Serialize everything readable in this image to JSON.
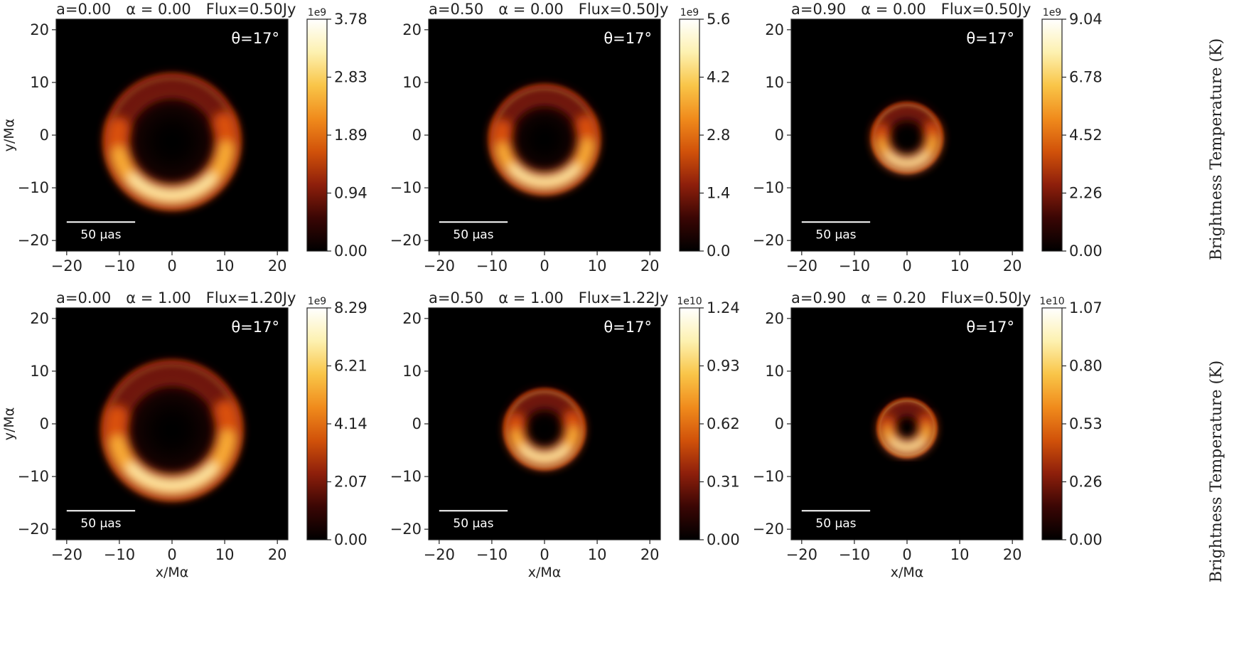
{
  "figure": {
    "colorbar_label": "Brightness Temperature (K)",
    "scale_bar_label": "50 μas",
    "inclination_label": "θ=17°",
    "x_axis_label": "x/Mα",
    "y_axis_label": "y/Mα"
  },
  "chart_data": [
    {
      "type": "heatmap",
      "title": "a=0.00   α = 0.00   Flux=0.50Jy",
      "spin": 0.0,
      "alpha": 0.0,
      "flux_jy": 0.5,
      "inclination_deg": 17,
      "xlim": [
        -22,
        22
      ],
      "ylim": [
        -22,
        22
      ],
      "ring_radius": 10.5,
      "ring_center_y": -1.2,
      "ring_width": 3.2,
      "asymmetry": 0.45,
      "colorbar": {
        "scale": "1e9",
        "ticks": [
          "0.00",
          "0.94",
          "1.89",
          "2.83",
          "3.78"
        ],
        "max": 3.78
      }
    },
    {
      "type": "heatmap",
      "title": "a=0.50   α = 0.00   Flux=0.50Jy",
      "spin": 0.5,
      "alpha": 0.0,
      "flux_jy": 0.5,
      "inclination_deg": 17,
      "xlim": [
        -22,
        22
      ],
      "ylim": [
        -22,
        22
      ],
      "ring_radius": 8.3,
      "ring_center_y": -0.8,
      "ring_width": 2.8,
      "asymmetry": 0.5,
      "colorbar": {
        "scale": "1e9",
        "ticks": [
          "0.0",
          "1.4",
          "2.8",
          "4.2",
          "5.6"
        ],
        "max": 5.6
      }
    },
    {
      "type": "heatmap",
      "title": "a=0.90   α = 0.00   Flux=0.50Jy",
      "spin": 0.9,
      "alpha": 0.0,
      "flux_jy": 0.5,
      "inclination_deg": 17,
      "xlim": [
        -22,
        22
      ],
      "ylim": [
        -22,
        22
      ],
      "ring_radius": 5.0,
      "ring_center_y": -0.5,
      "ring_width": 2.2,
      "asymmetry": 0.55,
      "colorbar": {
        "scale": "1e9",
        "ticks": [
          "0.00",
          "2.26",
          "4.52",
          "6.78",
          "9.04"
        ],
        "max": 9.04
      }
    },
    {
      "type": "heatmap",
      "title": "a=0.00   α = 1.00   Flux=1.20Jy",
      "spin": 0.0,
      "alpha": 1.0,
      "flux_jy": 1.2,
      "inclination_deg": 17,
      "xlim": [
        -22,
        22
      ],
      "ylim": [
        -22,
        22
      ],
      "ring_radius": 10.8,
      "ring_center_y": -1.2,
      "ring_width": 3.3,
      "asymmetry": 0.42,
      "colorbar": {
        "scale": "1e9",
        "ticks": [
          "0.00",
          "2.07",
          "4.14",
          "6.21",
          "8.29"
        ],
        "max": 8.29
      }
    },
    {
      "type": "heatmap",
      "title": "a=0.50   α = 1.00   Flux=1.22Jy",
      "spin": 0.5,
      "alpha": 1.0,
      "flux_jy": 1.22,
      "inclination_deg": 17,
      "xlim": [
        -22,
        22
      ],
      "ylim": [
        -22,
        22
      ],
      "ring_radius": 5.6,
      "ring_center_y": -1.0,
      "ring_width": 2.6,
      "asymmetry": 0.4,
      "colorbar": {
        "scale": "1e10",
        "ticks": [
          "0.00",
          "0.31",
          "0.62",
          "0.93",
          "1.24"
        ],
        "max": 1.24
      }
    },
    {
      "type": "heatmap",
      "title": "a=0.90   α = 0.20   Flux=0.50Jy",
      "spin": 0.9,
      "alpha": 0.2,
      "flux_jy": 0.5,
      "inclination_deg": 17,
      "xlim": [
        -22,
        22
      ],
      "ylim": [
        -22,
        22
      ],
      "ring_radius": 3.8,
      "ring_center_y": -0.8,
      "ring_width": 2.2,
      "asymmetry": 0.55,
      "colorbar": {
        "scale": "1e10",
        "ticks": [
          "0.00",
          "0.26",
          "0.53",
          "0.80",
          "1.07"
        ],
        "max": 1.07
      }
    }
  ],
  "axes": {
    "x_ticks": [
      "−20",
      "−10",
      "0",
      "10",
      "20"
    ],
    "x_tick_values": [
      -20,
      -10,
      0,
      10,
      20
    ],
    "y_ticks": [
      "20",
      "10",
      "0",
      "−10",
      "−20"
    ],
    "y_tick_values": [
      20,
      10,
      0,
      -10,
      -20
    ]
  },
  "colors": {
    "cmap_stops": [
      "#000000",
      "#3a0604",
      "#8e1f0b",
      "#d1520a",
      "#f08b1c",
      "#f9c548",
      "#fdf1b0",
      "#ffffff"
    ]
  }
}
